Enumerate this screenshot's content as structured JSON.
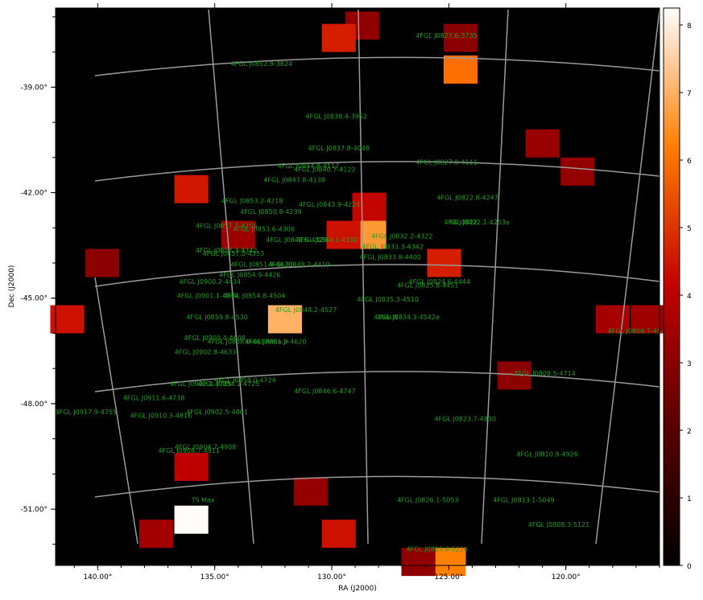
{
  "map": {
    "xlabel": "RA (J2000)",
    "ylabel": "Dec (J2000)",
    "ra_range": [
      141.8,
      116.0
    ],
    "dec_range": [
      -52.6,
      -36.75
    ],
    "ra_ticks": [
      {
        "value": 140,
        "label": "140.00°"
      },
      {
        "value": 135,
        "label": "135.00°"
      },
      {
        "value": 130,
        "label": "130.00°"
      },
      {
        "value": 125,
        "label": "125.00°"
      },
      {
        "value": 120,
        "label": "120.00°"
      }
    ],
    "dec_ticks": [
      {
        "value": -39,
        "label": "-39.00°"
      },
      {
        "value": -42,
        "label": "-42.00°"
      },
      {
        "value": -45,
        "label": "-45.00°"
      },
      {
        "value": -48,
        "label": "-48.00°"
      },
      {
        "value": -51,
        "label": "-51.00°"
      }
    ],
    "colorbar": {
      "min": 0,
      "max": 8.25,
      "ticks": [
        0,
        1,
        2,
        3,
        4,
        5,
        6,
        7,
        8
      ],
      "colormap": "gist_heat"
    },
    "grid": "on",
    "pixel_size_deg": 1.0
  },
  "chart_data": {
    "type": "heatmap",
    "xlabel": "RA (J2000)",
    "ylabel": "Dec (J2000)",
    "units": "TS",
    "bright_pixels": [
      {
        "ra": 128.7,
        "dec": -37.25,
        "value": 3.1
      },
      {
        "ra": 129.7,
        "dec": -37.6,
        "value": 4.6
      },
      {
        "ra": 124.5,
        "dec": -37.6,
        "value": 3.0
      },
      {
        "ra": 124.5,
        "dec": -38.5,
        "value": 5.9
      },
      {
        "ra": 121.0,
        "dec": -40.6,
        "value": 3.3
      },
      {
        "ra": 119.5,
        "dec": -41.4,
        "value": 3.2
      },
      {
        "ra": 136.0,
        "dec": -41.9,
        "value": 4.5
      },
      {
        "ra": 128.4,
        "dec": -42.4,
        "value": 4.2
      },
      {
        "ra": 128.4,
        "dec": -43.2,
        "value": 6.6
      },
      {
        "ra": 129.5,
        "dec": -43.2,
        "value": 4.4
      },
      {
        "ra": 125.2,
        "dec": -44.0,
        "value": 4.6
      },
      {
        "ra": 134.0,
        "dec": -43.2,
        "value": 3.4
      },
      {
        "ra": 139.8,
        "dec": -44.0,
        "value": 3.0
      },
      {
        "ra": 141.3,
        "dec": -45.6,
        "value": 4.4
      },
      {
        "ra": 132.0,
        "dec": -45.6,
        "value": 7.0
      },
      {
        "ra": 118.0,
        "dec": -45.6,
        "value": 3.6
      },
      {
        "ra": 116.5,
        "dec": -45.6,
        "value": 3.4
      },
      {
        "ra": 122.2,
        "dec": -47.2,
        "value": 3.0
      },
      {
        "ra": 136.0,
        "dec": -49.8,
        "value": 4.1
      },
      {
        "ra": 130.9,
        "dec": -50.5,
        "value": 3.2
      },
      {
        "ra": 136.0,
        "dec": -51.3,
        "value": 8.2
      },
      {
        "ra": 129.7,
        "dec": -51.7,
        "value": 4.4
      },
      {
        "ra": 137.5,
        "dec": -51.7,
        "value": 3.5
      },
      {
        "ra": 125.0,
        "dec": -52.5,
        "value": 6.2
      },
      {
        "ra": 126.3,
        "dec": -52.5,
        "value": 3.1
      }
    ],
    "sources": [
      {
        "name": "4FGL J0827.6-3735",
        "ra": 125.1,
        "dec": -37.6
      },
      {
        "name": "4FGL J0852.9-3824",
        "ra": 133.0,
        "dec": -38.4
      },
      {
        "name": "4FGL J0838.4-3952",
        "ra": 129.8,
        "dec": -39.9
      },
      {
        "name": "4FGL J0837.8-4048",
        "ra": 129.7,
        "dec": -40.8
      },
      {
        "name": "4FGL J0827.0-4111",
        "ra": 125.1,
        "dec": -41.2
      },
      {
        "name": "4FGL J0844.8-4117",
        "ra": 131.0,
        "dec": -41.3
      },
      {
        "name": "4FGL J0840.7-4122",
        "ra": 130.3,
        "dec": -41.4
      },
      {
        "name": "4FGL J0847.8-4138",
        "ra": 131.6,
        "dec": -41.7
      },
      {
        "name": "4FGL J0822.8-4247",
        "ra": 124.2,
        "dec": -42.2
      },
      {
        "name": "4FGL J0853.2-4218",
        "ra": 133.4,
        "dec": -42.3
      },
      {
        "name": "4FGL J0843.9-4224",
        "ra": 130.1,
        "dec": -42.4
      },
      {
        "name": "4FGL J0850.8-4239",
        "ra": 132.6,
        "dec": -42.6
      },
      {
        "name": "4FGL J0822.1-4253e",
        "ra": 123.8,
        "dec": -42.9
      },
      {
        "name": "RX J0822",
        "ra": 124.4,
        "dec": -42.9
      },
      {
        "name": "4FGL J0857.7-4256",
        "ra": 134.5,
        "dec": -43.0
      },
      {
        "name": "4FGL J0853.6-4306",
        "ra": 132.9,
        "dec": -43.1
      },
      {
        "name": "4FGL J0832.2-4322",
        "ra": 127.0,
        "dec": -43.3
      },
      {
        "name": "4FGL J0848.6-4328",
        "ra": 131.5,
        "dec": -43.4
      },
      {
        "name": "4FGL J0844.1-4330",
        "ra": 130.2,
        "dec": -43.4
      },
      {
        "name": "4FGL J0833.3-4342",
        "ra": 127.4,
        "dec": -43.6
      },
      {
        "name": "4FGL J0857.3-4342",
        "ra": 134.5,
        "dec": -43.7
      },
      {
        "name": "4FGL J0857.0-4353",
        "ra": 134.2,
        "dec": -43.8
      },
      {
        "name": "4FGL J0833.8-4400",
        "ra": 127.5,
        "dec": -43.9
      },
      {
        "name": "4FGL J0851.9-4620",
        "ra": 133.0,
        "dec": -44.1
      },
      {
        "name": "4FGL J0848.2-4410",
        "ra": 131.4,
        "dec": -44.1
      },
      {
        "name": "4FGL J0854.9-4426",
        "ra": 133.5,
        "dec": -44.4
      },
      {
        "name": "4FGL J0900.2-4434",
        "ra": 135.2,
        "dec": -44.6
      },
      {
        "name": "4FGL J0824.6-4444",
        "ra": 125.4,
        "dec": -44.6
      },
      {
        "name": "4FGL J0825.8-4451",
        "ra": 125.9,
        "dec": -44.7
      },
      {
        "name": "4FGL J0901.1-4504",
        "ra": 135.3,
        "dec": -45.0
      },
      {
        "name": "4FGL J0854.8-4504",
        "ra": 133.3,
        "dec": -45.0
      },
      {
        "name": "4FGL J0835.3-4510",
        "ra": 127.6,
        "dec": -45.1
      },
      {
        "name": "4FGL J0848.2-4527",
        "ra": 131.1,
        "dec": -45.4
      },
      {
        "name": "4FGL J0859.8-4530",
        "ra": 134.9,
        "dec": -45.6
      },
      {
        "name": "4FGL J0834.3-4542e",
        "ra": 126.8,
        "dec": -45.6
      },
      {
        "name": "Vela X",
        "ra": 127.6,
        "dec": -45.6
      },
      {
        "name": "4FGL J0900.4-4608",
        "ra": 135.0,
        "dec": -46.2
      },
      {
        "name": "4FGL J0858.0-4618",
        "ra": 134.0,
        "dec": -46.3
      },
      {
        "name": "4FGL J0851.9-4620",
        "ra": 132.4,
        "dec": -46.3
      },
      {
        "name": "Vela Jr",
        "ra": 132.3,
        "dec": -46.3
      },
      {
        "name": "4FGL J0808.7-4545",
        "ra": 116.9,
        "dec": -46.0
      },
      {
        "name": "4FGL J0902.8-4633",
        "ra": 135.4,
        "dec": -46.6
      },
      {
        "name": "4FGL J0809.5-4714",
        "ra": 120.9,
        "dec": -47.2
      },
      {
        "name": "4FGL J0858.0-4724",
        "ra": 133.7,
        "dec": -47.4
      },
      {
        "name": "4FGL J0902.1-4725",
        "ra": 135.6,
        "dec": -47.5
      },
      {
        "name": "4FGL J0854.2-4725",
        "ra": 134.4,
        "dec": -47.5
      },
      {
        "name": "4FGL J0846.6-4747",
        "ra": 130.3,
        "dec": -47.7
      },
      {
        "name": "4FGL J0911.6-4738",
        "ra": 137.6,
        "dec": -47.9
      },
      {
        "name": "4FGL J0902.5-4801",
        "ra": 134.9,
        "dec": -48.3
      },
      {
        "name": "4FGL J0917.9-4755",
        "ra": 140.5,
        "dec": -48.3
      },
      {
        "name": "4FGL J0910.3-4816",
        "ra": 137.3,
        "dec": -48.4
      },
      {
        "name": "4FGL J0823.7-4830",
        "ra": 124.3,
        "dec": -48.5
      },
      {
        "name": "4FGL J0904.7-4908",
        "ra": 135.4,
        "dec": -49.3
      },
      {
        "name": "4FGL J0908.7-4911",
        "ra": 136.1,
        "dec": -49.4
      },
      {
        "name": "4FGL J0810.9-4926",
        "ra": 120.8,
        "dec": -49.5
      },
      {
        "name": "TS Max",
        "ra": 135.5,
        "dec": -50.8
      },
      {
        "name": "4FGL J0826.1-5053",
        "ra": 125.9,
        "dec": -50.8
      },
      {
        "name": "4FGL J0813.1-5049",
        "ra": 121.8,
        "dec": -50.8
      },
      {
        "name": "4FGL J0808.3-5121",
        "ra": 120.3,
        "dec": -51.5
      },
      {
        "name": "4FGL J0825.6-5216",
        "ra": 125.5,
        "dec": -52.2
      }
    ]
  }
}
